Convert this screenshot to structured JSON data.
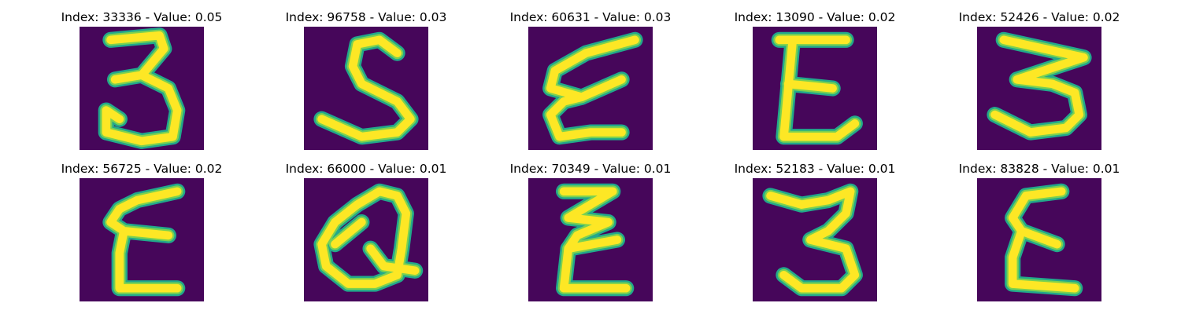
{
  "colors": {
    "background": "#46065a",
    "stroke_outer": "#22a88b",
    "stroke_mid": "#7ad151",
    "stroke_inner": "#fde725"
  },
  "panels": [
    {
      "title": "Index: 33336 - Value: 0.05",
      "glyph": "3"
    },
    {
      "title": "Index: 96758 - Value: 0.03",
      "glyph": "S"
    },
    {
      "title": "Index: 60631 - Value: 0.03",
      "glyph": "E (slanted)"
    },
    {
      "title": "Index: 13090 - Value: 0.02",
      "glyph": "E"
    },
    {
      "title": "Index: 52426 - Value: 0.02",
      "glyph": "3"
    },
    {
      "title": "Index: 56725 - Value: 0.02",
      "glyph": "E"
    },
    {
      "title": "Index: 66000 - Value: 0.01",
      "glyph": "Q"
    },
    {
      "title": "Index: 70349 - Value: 0.01",
      "glyph": "E (zigzag)"
    },
    {
      "title": "Index: 52183 - Value: 0.01",
      "glyph": "3"
    },
    {
      "title": "Index: 83828 - Value: 0.01",
      "glyph": "E"
    }
  ]
}
